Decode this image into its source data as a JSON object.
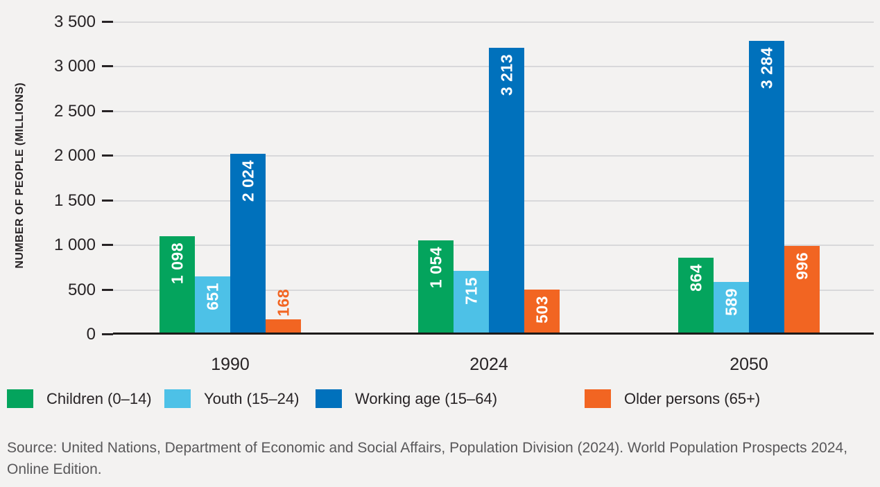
{
  "chart_data": {
    "type": "bar",
    "title": "",
    "ylabel": "NUMBER OF PEOPLE (MILLIONS)",
    "categories": [
      "1990",
      "2024",
      "2050"
    ],
    "series": [
      {
        "name": "Children (0–14)",
        "color": "#04a45d",
        "values": [
          1098,
          1054,
          864
        ],
        "labels": [
          "1 098",
          "1 054",
          "864"
        ]
      },
      {
        "name": "Youth (15–24)",
        "color": "#4dc1e7",
        "values": [
          651,
          715,
          589
        ],
        "labels": [
          "651",
          "715",
          "589"
        ]
      },
      {
        "name": "Working age (15–64)",
        "color": "#0071bc",
        "values": [
          2024,
          3213,
          3284
        ],
        "labels": [
          "2 024",
          "3 213",
          "3 284"
        ]
      },
      {
        "name": "Older persons (65+)",
        "color": "#f26522",
        "values": [
          168,
          503,
          996
        ],
        "labels": [
          "168",
          "503",
          "996"
        ]
      }
    ],
    "ylim": [
      0,
      3500
    ],
    "ytick_values": [
      0,
      500,
      1000,
      1500,
      2000,
      2500,
      3000,
      3500
    ],
    "ytick_labels": [
      "0",
      "500",
      "1 000",
      "1 500",
      "2 000",
      "2 500",
      "3 000",
      "3 500"
    ],
    "grid": true,
    "legend_position": "bottom"
  },
  "source": {
    "line1": "Source: United Nations, Department of Economic and Social Affairs, Population Division (2024). World Population Prospects 2024,",
    "line2": "Online Edition."
  }
}
